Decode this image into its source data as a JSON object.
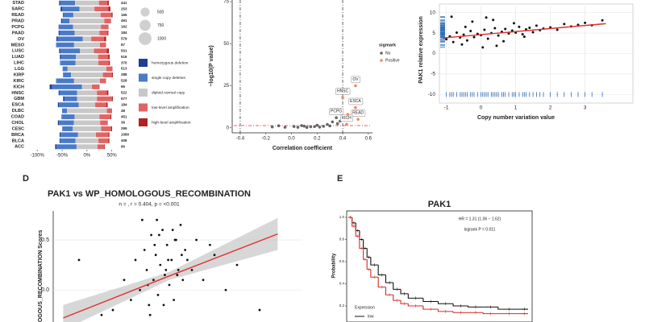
{
  "chart_data": [
    {
      "type": "bar",
      "categories": [
        "STAD",
        "SARC",
        "READ",
        "PRAD",
        "PCPG",
        "PAAD",
        "OV",
        "MESO",
        "LUSC",
        "LUAD",
        "LIHC",
        "LGG",
        "KIRP",
        "KIRC",
        "KICH",
        "HNSC",
        "GBM",
        "ESCA",
        "DLBC",
        "COAD",
        "CHOL",
        "CESC",
        "BRCA",
        "BLCA",
        "ACC"
      ],
      "sample_sizes": [
        441,
        253,
        165,
        491,
        162,
        184,
        579,
        87,
        501,
        516,
        370,
        513,
        288,
        528,
        66,
        522,
        577,
        184,
        48,
        451,
        36,
        295,
        1080,
        408,
        90
      ],
      "series": [
        {
          "name": "homozygous deletion",
          "color": "#1f3f8f",
          "values": [
            2,
            3,
            1,
            2,
            1,
            2,
            3,
            1,
            2,
            2,
            1,
            0,
            1,
            1,
            5,
            2,
            3,
            2,
            0,
            1,
            2,
            1,
            2,
            2,
            3
          ]
        },
        {
          "name": "single copy deletion",
          "color": "#4a7ac7",
          "values": [
            30,
            35,
            20,
            15,
            28,
            30,
            50,
            35,
            40,
            30,
            30,
            10,
            15,
            35,
            60,
            35,
            25,
            40,
            10,
            25,
            30,
            20,
            35,
            30,
            40
          ]
        },
        {
          "name": "diploid normal copy",
          "color": "#c8c8c8",
          "values": [
            48,
            30,
            55,
            70,
            56,
            50,
            17,
            52,
            28,
            45,
            46,
            78,
            64,
            52,
            20,
            40,
            40,
            33,
            80,
            50,
            53,
            57,
            36,
            46,
            42
          ]
        },
        {
          "name": "low-level amplification",
          "color": "#e06464",
          "values": [
            17,
            28,
            22,
            12,
            14,
            16,
            26,
            11,
            26,
            20,
            21,
            11,
            18,
            11,
            14,
            20,
            30,
            22,
            9,
            22,
            14,
            20,
            25,
            20,
            14
          ]
        },
        {
          "name": "high-level amplification",
          "color": "#b02222",
          "values": [
            3,
            4,
            2,
            1,
            1,
            2,
            4,
            1,
            4,
            3,
            2,
            1,
            2,
            1,
            1,
            3,
            2,
            3,
            1,
            2,
            1,
            2,
            2,
            2,
            1
          ]
        }
      ],
      "size_legend": [
        500,
        750,
        1000
      ],
      "xlim": [
        -110,
        65
      ],
      "xticks": [
        {
          "value": -100,
          "label": "-100%"
        },
        {
          "value": -50,
          "label": "-50%"
        },
        {
          "value": 0,
          "label": "0%"
        },
        {
          "value": 50,
          "label": "50%"
        }
      ]
    },
    {
      "type": "scatter",
      "xlabel": "Correlation coefficient",
      "ylabel": "−log10(P value)",
      "legend_title": "sigmark",
      "legend": true,
      "series": [
        {
          "name": "No",
          "color": "#666666",
          "x": [
            -0.15,
            -0.1,
            0.02,
            0.05,
            0.1,
            0.15,
            0.2,
            0.22,
            0.25,
            0.28,
            0.3,
            0.32,
            0.35,
            0.36,
            0.38,
            0.12,
            0.18,
            -0.05,
            0.08
          ],
          "values": [
            0.5,
            1.2,
            0.8,
            0.3,
            1.0,
            0.6,
            1.5,
            0.4,
            0.9,
            2.0,
            1.1,
            3.5,
            6.0,
            2.5,
            4.0,
            0.2,
            0.7,
            0.3,
            1.3
          ],
          "labels": [
            null,
            null,
            null,
            null,
            null,
            null,
            null,
            null,
            null,
            null,
            null,
            null,
            "PCPG",
            null,
            null,
            null,
            null,
            null,
            null
          ]
        },
        {
          "name": "Positive",
          "color": "#f0865a",
          "x": [
            0.4,
            0.5,
            0.5,
            0.52,
            0.43,
            0.44
          ],
          "values": [
            18,
            25,
            12,
            5,
            2,
            8
          ],
          "labels": [
            "HNSC",
            "OV",
            "ESCA",
            "READ",
            "KICH",
            null
          ]
        }
      ],
      "vlines": [
        -0.4,
        0.4
      ],
      "hline": 1.3,
      "xlim": [
        -0.45,
        0.62
      ],
      "ylim": [
        -3,
        76
      ],
      "xticks": [
        -0.4,
        -0.2,
        {
          "value": 0,
          "label": "0.0"
        },
        0.2,
        0.4,
        0.6
      ],
      "yticks": [
        0,
        25,
        50,
        75
      ]
    },
    {
      "type": "scatter",
      "xlabel": "Copy number variation value",
      "ylabel": "PAK1 relative expression",
      "grid": true,
      "rug": true,
      "rug_color": "#2e6db4",
      "series": [
        {
          "color": "#111111",
          "x": [
            -1.0,
            -0.9,
            -0.8,
            -0.7,
            -0.6,
            -0.5,
            -0.4,
            -0.3,
            -0.2,
            -0.1,
            0.0,
            0.1,
            0.2,
            0.3,
            0.4,
            0.5,
            0.6,
            0.7,
            0.8,
            0.9,
            1.0,
            1.1,
            1.2,
            1.3,
            1.4,
            1.5,
            1.6,
            1.7,
            1.8,
            2.0,
            2.2,
            2.4,
            2.6,
            2.8,
            3.0,
            3.2,
            3.5,
            -0.85,
            -0.55,
            -0.25,
            0.05,
            0.35,
            0.65,
            0.95,
            1.25,
            0.15,
            -0.45,
            0.45
          ],
          "values": [
            3.5,
            4.2,
            2.8,
            5.1,
            3.9,
            4.6,
            3.2,
            5.5,
            4.0,
            4.8,
            4.5,
            5.8,
            3.6,
            5.0,
            6.2,
            4.4,
            5.3,
            6.0,
            4.9,
            5.6,
            5.1,
            6.5,
            4.7,
            5.9,
            6.3,
            5.2,
            6.8,
            5.7,
            6.1,
            6.4,
            5.8,
            7.2,
            6.6,
            7.0,
            7.5,
            6.9,
            8.1,
            9.0,
            2.2,
            7.8,
            1.5,
            8.2,
            3.0,
            7.4,
            4.1,
            8.8,
            6.5,
            1.9
          ]
        }
      ],
      "fit": {
        "color": "#e03030",
        "x": [
          -1.1,
          3.6
        ],
        "values": [
          3.8,
          7.3
        ]
      },
      "xlim": [
        -1.2,
        3.8
      ],
      "ylim": [
        -11.5,
        11.5
      ],
      "xticks": [
        -1,
        0,
        1,
        2,
        3
      ],
      "yticks": [
        -10,
        -5,
        0,
        5,
        10
      ]
    },
    {
      "type": "scatter",
      "panel_label": "D",
      "title": "PAK1 vs WP_HOMOLOGOUS_RECOMBINATION",
      "subtitle": "n = , r = 0.404, p = <0.001",
      "ylabel": "LOGOUS_RECOMBINATION Scores",
      "grid": true,
      "series": [
        {
          "color": "#111111",
          "x": [
            2.5,
            3.0,
            3.3,
            3.5,
            3.7,
            3.9,
            4.0,
            4.1,
            4.2,
            4.3,
            4.4,
            4.5,
            4.6,
            4.7,
            4.8,
            4.9,
            5.0,
            5.1,
            5.2,
            5.3,
            5.4,
            5.5,
            5.6,
            5.7,
            5.8,
            6.0,
            6.2,
            6.5,
            7.0,
            7.5,
            8.0,
            9.0,
            3.8,
            4.15,
            4.35,
            4.55,
            4.75,
            4.95,
            5.15,
            5.35,
            5.55,
            1.0,
            2.0,
            6.8,
            4.05,
            4.45,
            4.85,
            5.25
          ],
          "values": [
            -0.2,
            0.1,
            -0.1,
            0.3,
            0.0,
            0.4,
            0.2,
            -0.15,
            0.55,
            0.1,
            0.35,
            -0.05,
            0.25,
            0.6,
            0.15,
            0.45,
            0.05,
            0.3,
            -0.1,
            0.5,
            0.2,
            0.65,
            0.1,
            0.4,
            0.3,
            0.2,
            0.5,
            0.1,
            0.35,
            0.0,
            0.25,
            -0.2,
            0.7,
            -0.25,
            0.45,
            0.55,
            -0.15,
            0.3,
            0.6,
            0.15,
            0.35,
            0.3,
            -0.25,
            0.45,
            0.05,
            0.7,
            0.2,
            0.5
          ]
        }
      ],
      "fit": {
        "color": "#e03030",
        "x": [
          0.3,
          5,
          9.8
        ],
        "values": [
          -0.28,
          0.14,
          0.56
        ],
        "ci_upper": [
          -0.15,
          0.18,
          0.72
        ],
        "ci_lower": [
          -0.4,
          0.1,
          0.4
        ]
      },
      "xlim": [
        0,
        10
      ],
      "ylim": [
        -0.32,
        0.79
      ],
      "yticks": [
        {
          "value": 0,
          "label": "0.0"
        },
        0.5
      ]
    },
    {
      "type": "line",
      "panel_label": "E",
      "title": "PAK1",
      "ylabel": "Probability",
      "annotations": [
        "HR = 1.31 (1.06 − 1.62)",
        "logrank P = 0.011"
      ],
      "legend_title": "Expression",
      "series": [
        {
          "name": "low",
          "color": "#111111",
          "x": [
            0,
            5,
            10,
            15,
            20,
            25,
            30,
            40,
            50,
            60,
            70,
            80,
            100,
            120,
            140,
            160,
            180,
            200,
            230
          ],
          "values": [
            1.0,
            0.95,
            0.88,
            0.8,
            0.72,
            0.64,
            0.57,
            0.48,
            0.41,
            0.35,
            0.31,
            0.27,
            0.24,
            0.22,
            0.2,
            0.19,
            0.19,
            0.17,
            0.17
          ]
        },
        {
          "color": "#d42a2a",
          "x": [
            0,
            5,
            10,
            15,
            20,
            25,
            30,
            40,
            50,
            60,
            70,
            80,
            100,
            120,
            140,
            160,
            180,
            200,
            230
          ],
          "values": [
            1.0,
            0.92,
            0.83,
            0.72,
            0.62,
            0.53,
            0.46,
            0.37,
            0.3,
            0.25,
            0.22,
            0.2,
            0.17,
            0.15,
            0.14,
            0.14,
            0.13,
            0.13,
            0.13
          ]
        }
      ],
      "xlim": [
        0,
        240
      ],
      "ylim": [
        0,
        1
      ],
      "yticks": [
        {
          "value": 1,
          "label": "1.0"
        },
        0.8,
        0.6,
        0.4,
        0.2
      ]
    }
  ]
}
